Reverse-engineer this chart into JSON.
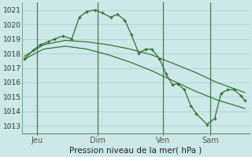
{
  "background_color": "#cce8e8",
  "grid_color": "#aacccc",
  "line_color": "#2d6e2d",
  "xlabel": "Pression niveau de la mer( hPa )",
  "ylim": [
    1012.5,
    1021.5
  ],
  "xlim": [
    0,
    10.5
  ],
  "yticks": [
    1013,
    1014,
    1015,
    1016,
    1017,
    1018,
    1019,
    1020,
    1021
  ],
  "day_positions": [
    0.7,
    3.5,
    6.5,
    8.7
  ],
  "day_labels": [
    "Jeu",
    "Dim",
    "Ven",
    "Sam"
  ],
  "day_vlines": [
    0.7,
    3.5,
    6.5,
    8.7
  ],
  "series1_x": [
    0.1,
    0.5,
    0.85,
    1.2,
    1.5,
    1.9,
    2.3,
    2.65,
    3.0,
    3.4,
    3.7,
    4.1,
    4.4,
    4.75,
    5.05,
    5.4,
    5.7,
    6.0,
    6.35,
    6.65,
    6.95,
    7.2,
    7.5,
    7.8,
    8.05,
    8.55,
    8.9,
    9.2,
    9.5,
    9.8,
    10.1,
    10.3
  ],
  "series1_y": [
    1017.6,
    1018.2,
    1018.6,
    1018.8,
    1019.0,
    1019.2,
    1019.0,
    1020.5,
    1020.9,
    1021.0,
    1020.8,
    1020.5,
    1020.7,
    1020.3,
    1019.3,
    1018.0,
    1018.3,
    1018.3,
    1017.65,
    1016.6,
    1015.85,
    1015.9,
    1015.5,
    1014.4,
    1013.85,
    1013.1,
    1013.5,
    1015.25,
    1015.5,
    1015.5,
    1015.1,
    1014.75
  ],
  "series2_x": [
    0.1,
    1.0,
    2.0,
    3.0,
    4.0,
    5.0,
    6.0,
    7.0,
    8.0,
    9.0,
    10.3
  ],
  "series2_y": [
    1017.8,
    1018.6,
    1018.9,
    1018.8,
    1018.6,
    1018.3,
    1017.9,
    1017.3,
    1016.7,
    1016.0,
    1015.3
  ],
  "series3_x": [
    0.1,
    1.0,
    2.0,
    3.0,
    4.0,
    5.0,
    6.0,
    7.0,
    8.0,
    9.0,
    10.3
  ],
  "series3_y": [
    1017.6,
    1018.3,
    1018.5,
    1018.3,
    1017.9,
    1017.4,
    1016.8,
    1016.1,
    1015.4,
    1014.8,
    1014.2
  ]
}
